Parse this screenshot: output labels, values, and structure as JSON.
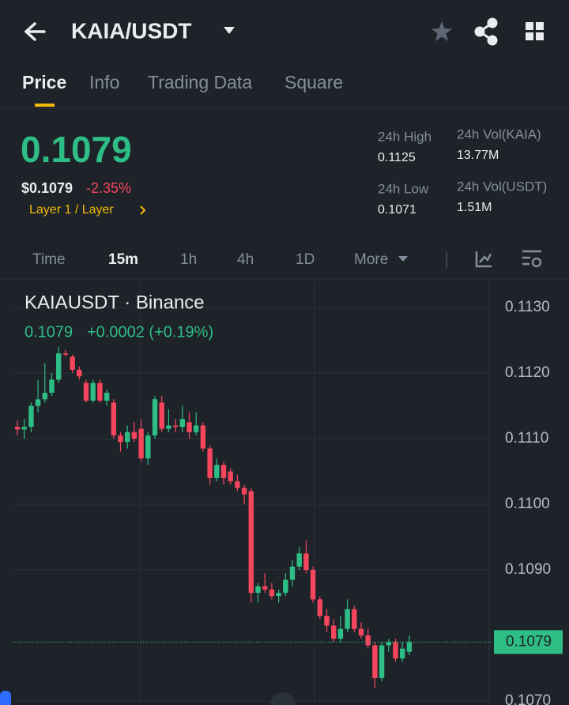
{
  "header": {
    "pair": "KAIA/USDT"
  },
  "tabs": {
    "items": [
      "Price",
      "Info",
      "Trading Data",
      "Square"
    ],
    "active": 0
  },
  "price": {
    "last": "0.1079",
    "usd": "$0.1079",
    "change": "-2.35%",
    "tag": "Layer 1 / Layer"
  },
  "stats": [
    {
      "label": "24h High",
      "value": "0.1125"
    },
    {
      "label": "24h Vol(KAIA)",
      "value": "13.77M"
    },
    {
      "label": "24h Low",
      "value": "0.1071"
    },
    {
      "label": "24h Vol(USDT)",
      "value": "1.51M"
    }
  ],
  "intervals": {
    "items": [
      "Time",
      "15m",
      "1h",
      "4h",
      "1D",
      "More"
    ],
    "active": 1
  },
  "chart_data": {
    "type": "candlestick",
    "title": "KAIAUSDT · Binance",
    "legend": {
      "close": "0.1079",
      "change": "+0.0002 (+0.19%)"
    },
    "up_color": "#2ebd85",
    "down_color": "#f6465d",
    "ylim": [
      0.10694,
      0.11341
    ],
    "yticks": [
      {
        "value": 0.113,
        "label": "0.1130"
      },
      {
        "value": 0.112,
        "label": "0.1120"
      },
      {
        "value": 0.111,
        "label": "0.1110"
      },
      {
        "value": 0.11,
        "label": "0.1100"
      },
      {
        "value": 0.109,
        "label": "0.1090"
      },
      {
        "value": 0.107,
        "label": "0.1070"
      }
    ],
    "last_price": {
      "value": 0.1079,
      "label": "0.1079"
    },
    "open": [
      0.11118,
      0.11114,
      0.11118,
      0.1115,
      0.1116,
      0.1117,
      0.1119,
      0.1123,
      0.11225,
      0.11205,
      0.11185,
      0.11158,
      0.11185,
      0.11158,
      0.11155,
      0.11105,
      0.11095,
      0.1111,
      0.11115,
      0.1107,
      0.11105,
      0.11155,
      0.11115,
      0.1112,
      0.11118,
      0.11125,
      0.1111,
      0.1112,
      0.11085,
      0.1104,
      0.1106,
      0.1105,
      0.11035,
      0.11025,
      0.1102,
      0.10865,
      0.10875,
      0.1087,
      0.1086,
      0.10865,
      0.10885,
      0.10905,
      0.10925,
      0.109,
      0.10855,
      0.1083,
      0.10815,
      0.10795,
      0.1081,
      0.1084,
      0.1081,
      0.108,
      0.10785,
      0.10735,
      0.10785,
      0.1079,
      0.10765,
      0.10775
    ],
    "high": [
      0.11128,
      0.1113,
      0.11155,
      0.1119,
      0.11215,
      0.112,
      0.1124,
      0.11235,
      0.11228,
      0.1121,
      0.1119,
      0.1119,
      0.1119,
      0.11175,
      0.1116,
      0.1111,
      0.1112,
      0.11125,
      0.1113,
      0.1111,
      0.11165,
      0.11165,
      0.11145,
      0.1113,
      0.1115,
      0.1114,
      0.1114,
      0.11125,
      0.1109,
      0.1107,
      0.11065,
      0.11055,
      0.11045,
      0.1103,
      0.11025,
      0.1088,
      0.10895,
      0.1088,
      0.1087,
      0.10895,
      0.10915,
      0.10935,
      0.10945,
      0.10905,
      0.1086,
      0.1084,
      0.10825,
      0.1083,
      0.10855,
      0.10845,
      0.1082,
      0.1081,
      0.1079,
      0.1079,
      0.10795,
      0.10795,
      0.1079,
      0.108
    ],
    "low": [
      0.11105,
      0.111,
      0.1111,
      0.1114,
      0.11155,
      0.11165,
      0.11185,
      0.11225,
      0.112,
      0.1119,
      0.11155,
      0.11155,
      0.11155,
      0.1115,
      0.111,
      0.1108,
      0.11085,
      0.11095,
      0.11065,
      0.1106,
      0.111,
      0.1111,
      0.1111,
      0.1111,
      0.1111,
      0.111,
      0.11105,
      0.1108,
      0.1103,
      0.11035,
      0.1103,
      0.1103,
      0.1102,
      0.11,
      0.1085,
      0.1085,
      0.10865,
      0.10855,
      0.1085,
      0.1086,
      0.10875,
      0.109,
      0.10895,
      0.1085,
      0.10825,
      0.10805,
      0.1079,
      0.1079,
      0.10805,
      0.10805,
      0.10795,
      0.1078,
      0.1072,
      0.1073,
      0.10775,
      0.1076,
      0.1076,
      0.1077
    ],
    "close": [
      0.11114,
      0.11118,
      0.1115,
      0.1116,
      0.1117,
      0.1119,
      0.1123,
      0.11228,
      0.11205,
      0.11195,
      0.11158,
      0.11185,
      0.11158,
      0.1117,
      0.11105,
      0.11095,
      0.1111,
      0.111,
      0.1107,
      0.11105,
      0.1116,
      0.11115,
      0.1112,
      0.11118,
      0.1113,
      0.1111,
      0.1112,
      0.11085,
      0.1104,
      0.1106,
      0.1104,
      0.11035,
      0.11025,
      0.11015,
      0.10865,
      0.10875,
      0.1087,
      0.1086,
      0.10865,
      0.10885,
      0.10905,
      0.10925,
      0.109,
      0.10855,
      0.1083,
      0.10815,
      0.10795,
      0.1081,
      0.1084,
      0.1081,
      0.108,
      0.10785,
      0.10735,
      0.10785,
      0.1079,
      0.10765,
      0.1078,
      0.1079
    ]
  }
}
